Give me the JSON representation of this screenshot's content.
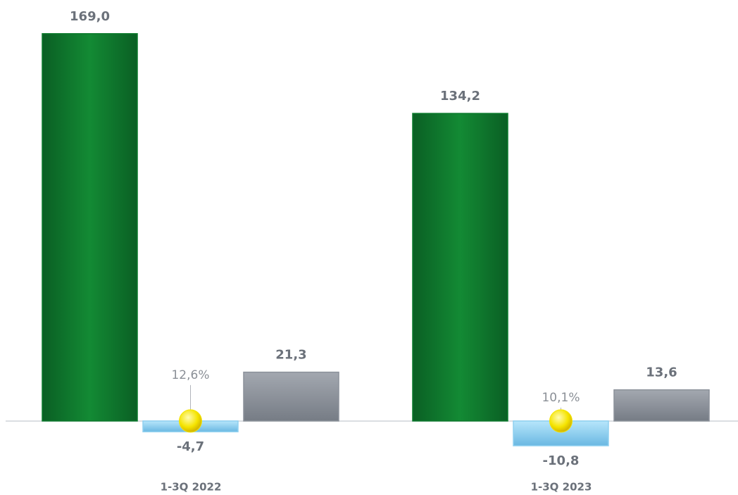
{
  "chart_data": {
    "type": "bar",
    "categories": [
      "1-3Q 2022",
      "1-3Q 2023"
    ],
    "series": [
      {
        "color": "#0b7a2c",
        "values": [
          169.0,
          134.2
        ],
        "value_labels": [
          "169,0",
          "134,2"
        ]
      },
      {
        "color": "#8fd0f0",
        "values": [
          -4.7,
          -10.8
        ],
        "value_labels": [
          "-4,7",
          "-10,8"
        ]
      },
      {
        "color": "#8b919a",
        "values": [
          21.3,
          13.6
        ],
        "value_labels": [
          "21,3",
          "13,6"
        ]
      },
      {
        "type": "marker",
        "color": "#f5e400",
        "values": [
          12.6,
          10.1
        ],
        "value_labels": [
          "12,6%",
          "10,1%"
        ]
      }
    ],
    "ylim": [
      -20,
      180
    ]
  }
}
